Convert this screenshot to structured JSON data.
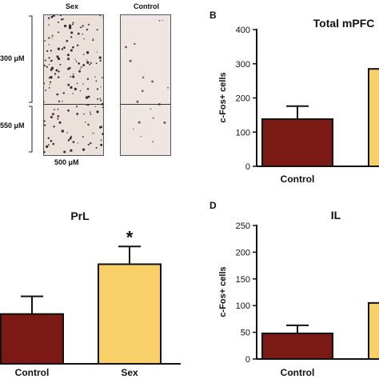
{
  "micrograph": {
    "columns": [
      "Sex",
      "Control"
    ],
    "row_labels": [
      "300 μM",
      "550 μM"
    ],
    "scale_label": "500 μM"
  },
  "panels": {
    "B": {
      "letter": "B"
    },
    "D": {
      "letter": "D"
    }
  },
  "chart_data": [
    {
      "id": "B",
      "type": "bar",
      "title": "Total mPFC",
      "ylabel": "c-Fos+ cells",
      "xlabel": "",
      "categories": [
        "Control"
      ],
      "values": [
        138
      ],
      "errors": [
        38
      ],
      "ylim": [
        0,
        400
      ],
      "yticks": [
        0,
        100,
        200,
        300,
        400
      ],
      "partial_bar_value": 285,
      "colors": [
        "#7b1a14"
      ],
      "partial_color": "#f9cf69"
    },
    {
      "id": "C",
      "type": "bar",
      "title": "PrL",
      "ylabel": "",
      "xlabel": "",
      "categories": [
        "Control",
        "Sex"
      ],
      "values": [
        90,
        180
      ],
      "errors": [
        32,
        32
      ],
      "significance": [
        "",
        "*"
      ],
      "ylim": [
        0,
        250
      ],
      "colors": [
        "#7b1a14",
        "#f9cf69"
      ]
    },
    {
      "id": "D",
      "type": "bar",
      "title": "IL",
      "ylabel": "c-Fos+ cells",
      "xlabel": "",
      "categories": [
        "Control"
      ],
      "values": [
        48
      ],
      "errors": [
        15
      ],
      "ylim": [
        0,
        250
      ],
      "yticks": [
        0,
        50,
        100,
        150,
        200,
        250
      ],
      "partial_bar_value": 105,
      "colors": [
        "#7b1a14"
      ],
      "partial_color": "#f9cf69"
    }
  ]
}
